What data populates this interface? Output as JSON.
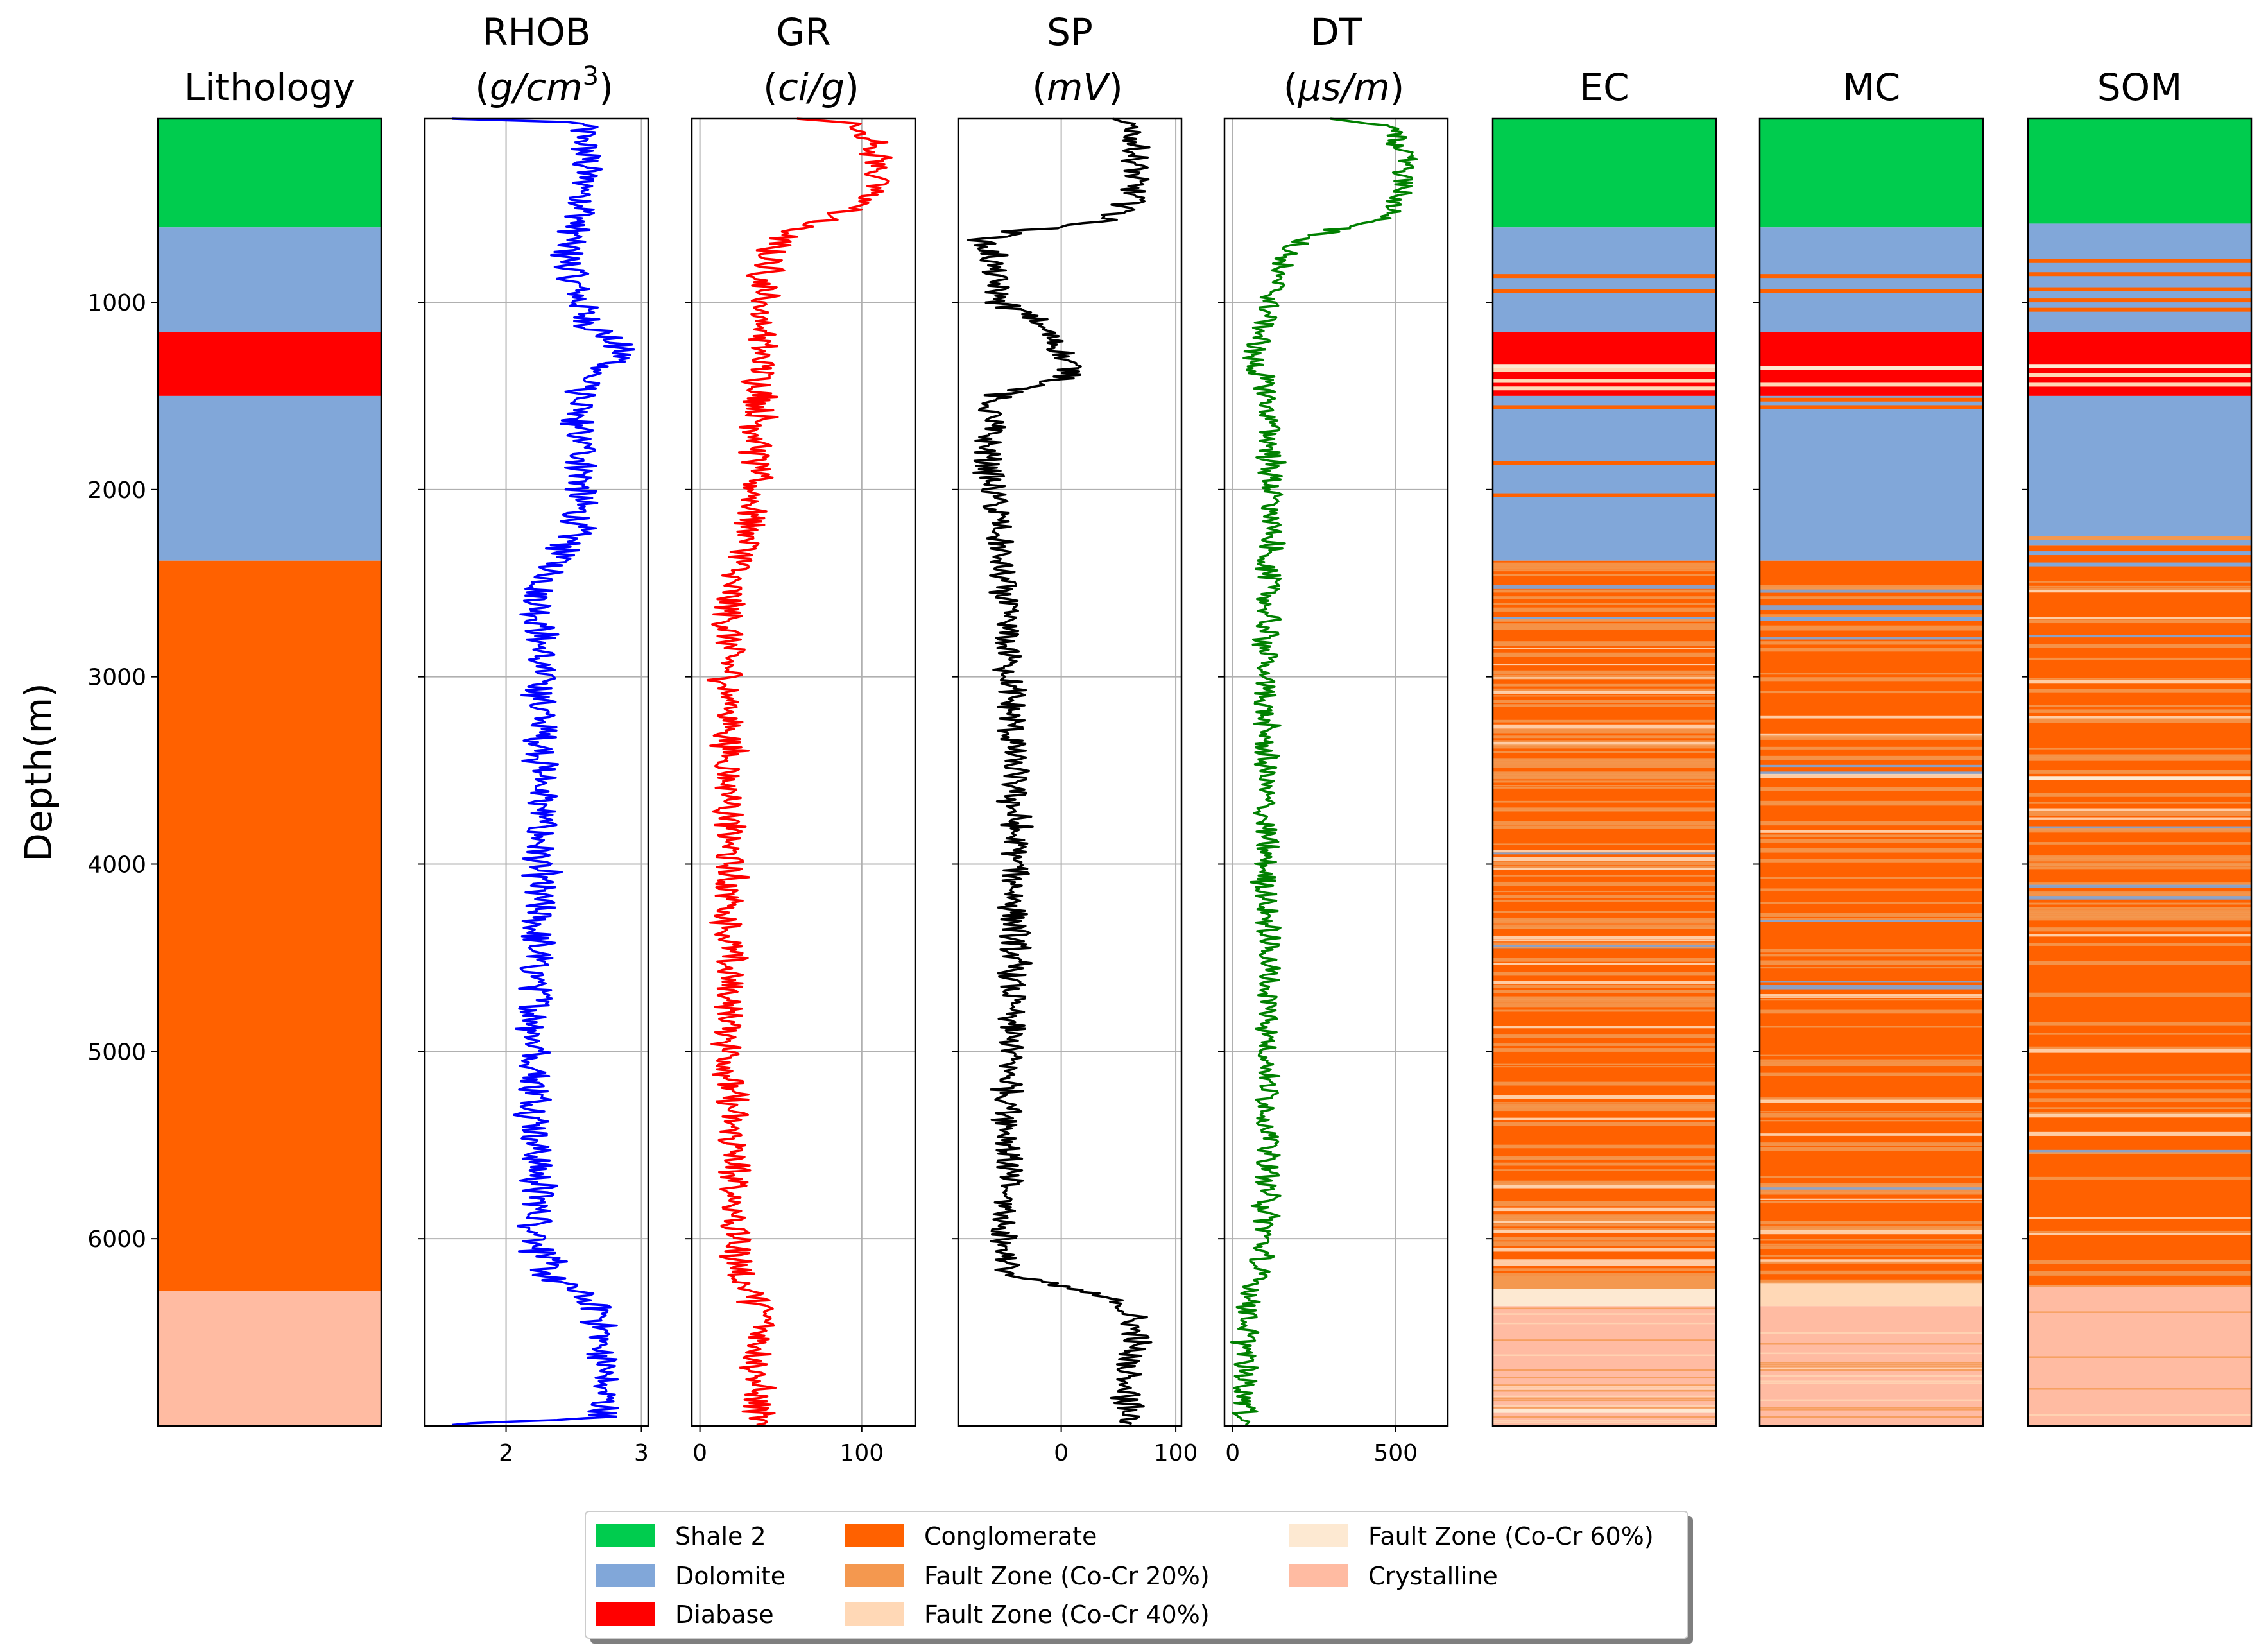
{
  "chart_data": {
    "type": "well-log",
    "ylabel": "Depth(m)",
    "ylim": [
      7000,
      20
    ],
    "yticks": [
      1000,
      2000,
      3000,
      4000,
      5000,
      6000
    ],
    "colors": {
      "Shale 2": "#00cc4e",
      "Dolomite": "#81a7d9",
      "Diabase": "#ff0000",
      "Conglomerate": "#ff6100",
      "Fault Zone (Co-Cr 20%)": "#f4984f",
      "Fault Zone (Co-Cr 40%)": "#ffd8b6",
      "Fault Zone (Co-Cr 60%)": "#fde9d2",
      "Crystalline": "#ffbba2"
    },
    "legend": {
      "position": "bottom-center",
      "entries": [
        "Shale 2",
        "Dolomite",
        "Diabase",
        "Conglomerate",
        "Fault Zone (Co-Cr 20%)",
        "Fault Zone (Co-Cr 40%)",
        "Fault Zone (Co-Cr 60%)",
        "Crystalline"
      ]
    },
    "lithology": {
      "title": "Lithology",
      "intervals": [
        {
          "top": 20,
          "base": 600,
          "class": "Shale 2"
        },
        {
          "top": 600,
          "base": 1160,
          "class": "Dolomite"
        },
        {
          "top": 1160,
          "base": 1500,
          "class": "Diabase"
        },
        {
          "top": 1500,
          "base": 2380,
          "class": "Dolomite"
        },
        {
          "top": 2380,
          "base": 6280,
          "class": "Conglomerate"
        },
        {
          "top": 6280,
          "base": 7000,
          "class": "Crystalline"
        }
      ]
    },
    "logs": [
      {
        "name": "RHOB",
        "unit": "g/cm",
        "unit_sup": "3",
        "color": "#0000ff",
        "xlim": [
          1.4,
          3.05
        ],
        "xticks": [
          "2",
          "3"
        ],
        "xtick_values": [
          2,
          3
        ],
        "profile": [
          [
            20,
            1.6
          ],
          [
            40,
            2.55
          ],
          [
            250,
            2.6
          ],
          [
            500,
            2.58
          ],
          [
            700,
            2.45
          ],
          [
            900,
            2.5
          ],
          [
            1100,
            2.6
          ],
          [
            1230,
            2.82
          ],
          [
            1300,
            2.85
          ],
          [
            1400,
            2.6
          ],
          [
            1600,
            2.5
          ],
          [
            1800,
            2.58
          ],
          [
            2000,
            2.55
          ],
          [
            2200,
            2.52
          ],
          [
            2350,
            2.4
          ],
          [
            2550,
            2.25
          ],
          [
            3000,
            2.25
          ],
          [
            3500,
            2.27
          ],
          [
            4000,
            2.24
          ],
          [
            4500,
            2.22
          ],
          [
            5000,
            2.22
          ],
          [
            5500,
            2.23
          ],
          [
            6000,
            2.25
          ],
          [
            6200,
            2.3
          ],
          [
            6300,
            2.55
          ],
          [
            6400,
            2.7
          ],
          [
            6700,
            2.72
          ],
          [
            6950,
            2.73
          ],
          [
            6995,
            1.6
          ]
        ],
        "noise": 0.12
      },
      {
        "name": "GR",
        "unit": "ci/g",
        "unit_sup": "",
        "color": "#ff0000",
        "xlim": [
          -5,
          133
        ],
        "xticks": [
          "0",
          "100"
        ],
        "xtick_values": [
          0,
          100
        ],
        "profile": [
          [
            20,
            60
          ],
          [
            40,
            90
          ],
          [
            150,
            110
          ],
          [
            300,
            110
          ],
          [
            450,
            105
          ],
          [
            550,
            80
          ],
          [
            600,
            60
          ],
          [
            700,
            45
          ],
          [
            900,
            40
          ],
          [
            1200,
            38
          ],
          [
            1500,
            38
          ],
          [
            1800,
            35
          ],
          [
            2100,
            33
          ],
          [
            2300,
            30
          ],
          [
            2500,
            18
          ],
          [
            3000,
            18
          ],
          [
            3500,
            18
          ],
          [
            4000,
            18
          ],
          [
            4500,
            18
          ],
          [
            5000,
            18
          ],
          [
            5500,
            20
          ],
          [
            6000,
            22
          ],
          [
            6200,
            25
          ],
          [
            6400,
            40
          ],
          [
            6700,
            35
          ],
          [
            6950,
            35
          ]
        ],
        "noise": 9
      },
      {
        "name": "SP",
        "unit": "mV",
        "unit_sup": "",
        "color": "#000000",
        "xlim": [
          -90,
          105
        ],
        "xticks": [
          "0",
          "100"
        ],
        "xtick_values": [
          0,
          100
        ],
        "profile": [
          [
            20,
            45
          ],
          [
            60,
            65
          ],
          [
            300,
            65
          ],
          [
            500,
            60
          ],
          [
            580,
            30
          ],
          [
            620,
            -40
          ],
          [
            680,
            -70
          ],
          [
            750,
            -60
          ],
          [
            1000,
            -55
          ],
          [
            1100,
            -20
          ],
          [
            1300,
            5
          ],
          [
            1400,
            10
          ],
          [
            1500,
            -60
          ],
          [
            1800,
            -65
          ],
          [
            2200,
            -55
          ],
          [
            2600,
            -50
          ],
          [
            3000,
            -45
          ],
          [
            3500,
            -42
          ],
          [
            4000,
            -40
          ],
          [
            4500,
            -42
          ],
          [
            5000,
            -45
          ],
          [
            5500,
            -45
          ],
          [
            6000,
            -50
          ],
          [
            6200,
            -45
          ],
          [
            6270,
            10
          ],
          [
            6350,
            55
          ],
          [
            6500,
            65
          ],
          [
            6700,
            60
          ],
          [
            6950,
            60
          ]
        ],
        "noise": 12
      },
      {
        "name": "DT",
        "unit": "μs/m",
        "unit_sup": "",
        "color": "#008000",
        "xlim": [
          -25,
          660
        ],
        "xticks": [
          "0",
          "500"
        ],
        "xtick_values": [
          0,
          500
        ],
        "profile": [
          [
            20,
            300
          ],
          [
            60,
            480
          ],
          [
            200,
            530
          ],
          [
            400,
            520
          ],
          [
            550,
            480
          ],
          [
            620,
            300
          ],
          [
            700,
            180
          ],
          [
            900,
            130
          ],
          [
            1100,
            100
          ],
          [
            1300,
            60
          ],
          [
            1500,
            110
          ],
          [
            2000,
            120
          ],
          [
            2500,
            110
          ],
          [
            3000,
            100
          ],
          [
            3500,
            100
          ],
          [
            4000,
            100
          ],
          [
            4500,
            110
          ],
          [
            5000,
            110
          ],
          [
            5500,
            110
          ],
          [
            6000,
            100
          ],
          [
            6300,
            60
          ],
          [
            6500,
            40
          ],
          [
            6950,
            40
          ]
        ],
        "noise": 35
      }
    ],
    "classifications": [
      {
        "name": "EC",
        "intervals": [
          {
            "top": 20,
            "base": 600,
            "class": "Shale 2"
          },
          {
            "top": 600,
            "base": 1160,
            "class": "Dolomite"
          },
          {
            "top": 1160,
            "base": 1500,
            "class": "Diabase"
          },
          {
            "top": 1500,
            "base": 2380,
            "class": "Dolomite"
          },
          {
            "top": 2380,
            "base": 6200,
            "class": "Conglomerate"
          },
          {
            "top": 6200,
            "base": 6270,
            "class": "Fault Zone (Co-Cr 20%)"
          },
          {
            "top": 6270,
            "base": 6360,
            "class": "Fault Zone (Co-Cr 60%)"
          },
          {
            "top": 6360,
            "base": 7000,
            "class": "Crystalline"
          }
        ],
        "thin_layers": [
          {
            "depth": 860,
            "class": "Conglomerate"
          },
          {
            "depth": 940,
            "class": "Conglomerate"
          },
          {
            "depth": 1340,
            "class": "Fault Zone (Co-Cr 60%)"
          },
          {
            "depth": 1360,
            "class": "Fault Zone (Co-Cr 40%)"
          },
          {
            "depth": 1420,
            "class": "Fault Zone (Co-Cr 40%)"
          },
          {
            "depth": 1460,
            "class": "Fault Zone (Co-Cr 40%)"
          },
          {
            "depth": 1560,
            "class": "Conglomerate"
          },
          {
            "depth": 1860,
            "class": "Conglomerate"
          },
          {
            "depth": 2030,
            "class": "Conglomerate"
          },
          {
            "depth": 2690,
            "class": "Dolomite"
          },
          {
            "depth": 6920,
            "class": "Fault Zone (Co-Cr 60%)"
          }
        ],
        "fault_density": 0.35,
        "mix_region": [
          2380,
          6200
        ],
        "crystalline_fault_density": 0.3
      },
      {
        "name": "MC",
        "intervals": [
          {
            "top": 20,
            "base": 600,
            "class": "Shale 2"
          },
          {
            "top": 600,
            "base": 1160,
            "class": "Dolomite"
          },
          {
            "top": 1160,
            "base": 1500,
            "class": "Diabase"
          },
          {
            "top": 1500,
            "base": 2380,
            "class": "Dolomite"
          },
          {
            "top": 2380,
            "base": 6230,
            "class": "Conglomerate"
          },
          {
            "top": 6230,
            "base": 6360,
            "class": "Fault Zone (Co-Cr 40%)"
          },
          {
            "top": 6360,
            "base": 7000,
            "class": "Crystalline"
          }
        ],
        "thin_layers": [
          {
            "depth": 860,
            "class": "Conglomerate"
          },
          {
            "depth": 940,
            "class": "Conglomerate"
          },
          {
            "depth": 1350,
            "class": "Fault Zone (Co-Cr 60%)"
          },
          {
            "depth": 1440,
            "class": "Fault Zone (Co-Cr 40%)"
          },
          {
            "depth": 1520,
            "class": "Conglomerate"
          },
          {
            "depth": 1560,
            "class": "Conglomerate"
          },
          {
            "depth": 2690,
            "class": "Dolomite"
          }
        ],
        "fault_density": 0.25,
        "mix_region": [
          2380,
          6230
        ],
        "crystalline_fault_density": 0.25
      },
      {
        "name": "SOM",
        "intervals": [
          {
            "top": 20,
            "base": 580,
            "class": "Shale 2"
          },
          {
            "top": 580,
            "base": 1160,
            "class": "Dolomite"
          },
          {
            "top": 1160,
            "base": 1500,
            "class": "Diabase"
          },
          {
            "top": 1500,
            "base": 2300,
            "class": "Dolomite"
          },
          {
            "top": 2300,
            "base": 6250,
            "class": "Conglomerate"
          },
          {
            "top": 6250,
            "base": 7000,
            "class": "Crystalline"
          }
        ],
        "thin_layers": [
          {
            "depth": 780,
            "class": "Conglomerate"
          },
          {
            "depth": 850,
            "class": "Conglomerate"
          },
          {
            "depth": 930,
            "class": "Conglomerate"
          },
          {
            "depth": 990,
            "class": "Conglomerate"
          },
          {
            "depth": 1040,
            "class": "Conglomerate"
          },
          {
            "depth": 1340,
            "class": "Fault Zone (Co-Cr 60%)"
          },
          {
            "depth": 1390,
            "class": "Fault Zone (Co-Cr 40%)"
          },
          {
            "depth": 1440,
            "class": "Fault Zone (Co-Cr 40%)"
          },
          {
            "depth": 2260,
            "class": "Fault Zone (Co-Cr 20%)"
          },
          {
            "depth": 2340,
            "class": "Dolomite"
          },
          {
            "depth": 2400,
            "class": "Dolomite"
          },
          {
            "depth": 3540,
            "class": "Fault Zone (Co-Cr 60%)"
          }
        ],
        "fault_density": 0.22,
        "mix_region": [
          2420,
          6250
        ],
        "crystalline_fault_density": 0.15
      }
    ]
  }
}
